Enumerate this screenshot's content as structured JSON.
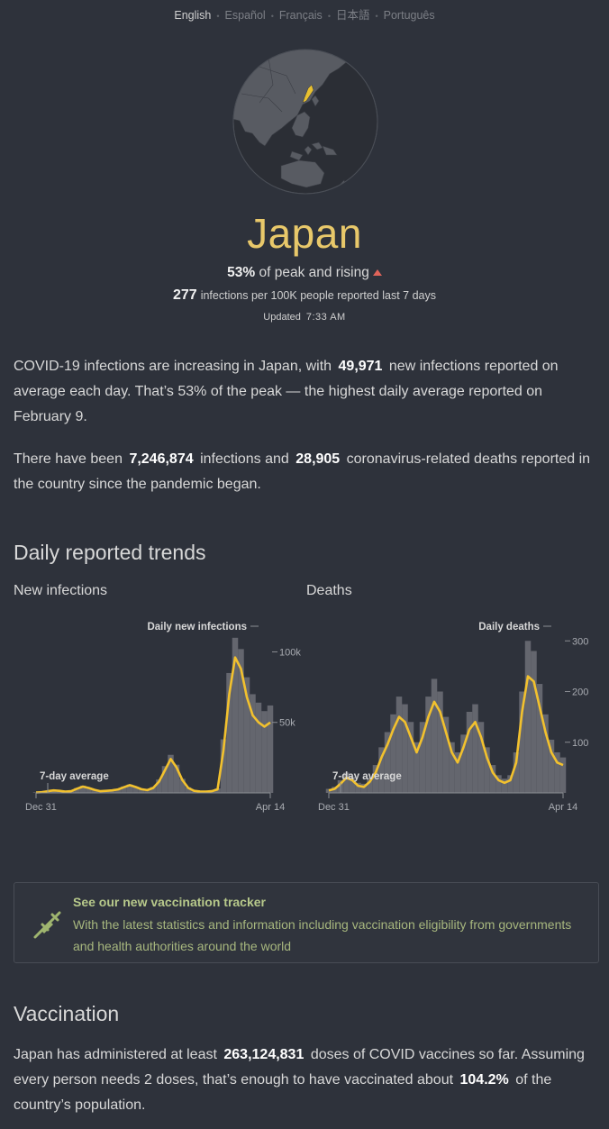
{
  "languages": [
    {
      "label": "English",
      "active": true
    },
    {
      "label": "Español",
      "active": false
    },
    {
      "label": "Français",
      "active": false
    },
    {
      "label": "日本語",
      "active": false
    },
    {
      "label": "Português",
      "active": false
    }
  ],
  "header": {
    "country": "Japan",
    "peak_pct": "53%",
    "peak_text": "of peak and rising",
    "per100k_value": "277",
    "per100k_text": "infections per 100K people reported last 7 days",
    "updated_label": "Updated",
    "updated_time": "7:33 AM"
  },
  "summary": {
    "p1_a": "COVID-19 infections are increasing in Japan, with",
    "p1_num": "49,971",
    "p1_b": "new infections reported on average each day. That’s 53% of the peak — the highest daily average reported on February 9.",
    "p2_a": "There have been",
    "p2_infections": "7,246,874",
    "p2_b": "infections and",
    "p2_deaths": "28,905",
    "p2_c": "coronavirus-related deaths reported in the country since the pandemic began."
  },
  "trends": {
    "title": "Daily reported trends",
    "infections_label": "New infections",
    "deaths_label": "Deaths"
  },
  "chart_data": [
    {
      "type": "area",
      "title": "New infections",
      "series": [
        {
          "name": "Daily new infections"
        },
        {
          "name": "7-day average"
        }
      ],
      "x_start": "Dec 31",
      "x_end": "Apr 14",
      "x_ticks": [
        "Dec 31",
        "Apr 14"
      ],
      "y_ticks": [
        "50k",
        "100k"
      ],
      "ylim": [
        0,
        115000
      ],
      "grid": false,
      "avg_values": [
        300,
        500,
        1200,
        1800,
        1500,
        900,
        1200,
        3000,
        4500,
        3500,
        2200,
        1200,
        1500,
        1800,
        2500,
        4000,
        5500,
        4200,
        2600,
        2000,
        3500,
        8000,
        16000,
        24000,
        18000,
        9000,
        3500,
        1500,
        1000,
        900,
        1200,
        2500,
        30000,
        70000,
        96000,
        88000,
        68000,
        55000,
        50000,
        47000,
        49971
      ],
      "daily_values": [
        400,
        600,
        1500,
        2100,
        1700,
        1100,
        1400,
        3500,
        5200,
        3800,
        2500,
        1500,
        1800,
        2100,
        2900,
        4600,
        6000,
        4500,
        2900,
        2300,
        4200,
        9500,
        19000,
        27000,
        20000,
        10000,
        4000,
        1800,
        1200,
        1000,
        1500,
        3200,
        38000,
        85000,
        110000,
        102000,
        82000,
        70000,
        64000,
        58000,
        62000
      ]
    },
    {
      "type": "area",
      "title": "Deaths",
      "series": [
        {
          "name": "Daily deaths"
        },
        {
          "name": "7-day average"
        }
      ],
      "x_start": "Dec 31",
      "x_end": "Apr 14",
      "x_ticks": [
        "Dec 31",
        "Apr 14"
      ],
      "y_ticks": [
        "100",
        "200",
        "300"
      ],
      "ylim": [
        0,
        320
      ],
      "grid": false,
      "avg_values": [
        5,
        8,
        18,
        30,
        25,
        14,
        12,
        22,
        40,
        70,
        95,
        125,
        150,
        140,
        110,
        80,
        110,
        150,
        180,
        160,
        120,
        80,
        60,
        90,
        125,
        140,
        110,
        70,
        40,
        25,
        20,
        25,
        60,
        160,
        230,
        220,
        170,
        120,
        80,
        60,
        55
      ],
      "daily_values": [
        8,
        12,
        25,
        40,
        32,
        20,
        18,
        30,
        55,
        90,
        120,
        155,
        190,
        175,
        140,
        100,
        140,
        190,
        225,
        200,
        150,
        100,
        80,
        115,
        160,
        175,
        140,
        90,
        55,
        35,
        28,
        35,
        80,
        200,
        300,
        280,
        215,
        155,
        105,
        80,
        70
      ]
    }
  ],
  "tracker": {
    "title": "See our new vaccination tracker",
    "body": "With the latest statistics and information including vaccination eligibility from governments and health authorities around the world",
    "icon": "syringe-icon"
  },
  "vaccination": {
    "title": "Vaccination",
    "p_a": "Japan has administered at least",
    "doses": "263,124,831",
    "p_b": "doses of COVID vaccines so far. Assuming every person needs 2 doses, that’s enough to have vaccinated about",
    "pct": "104.2%",
    "p_c": "of the country’s population."
  },
  "colors": {
    "background": "#2e323b",
    "accent": "#e8c86a",
    "line": "#f2c12e",
    "bars": "#6d7078",
    "rising": "#e0645a",
    "tracker_text": "#b7c98b"
  }
}
